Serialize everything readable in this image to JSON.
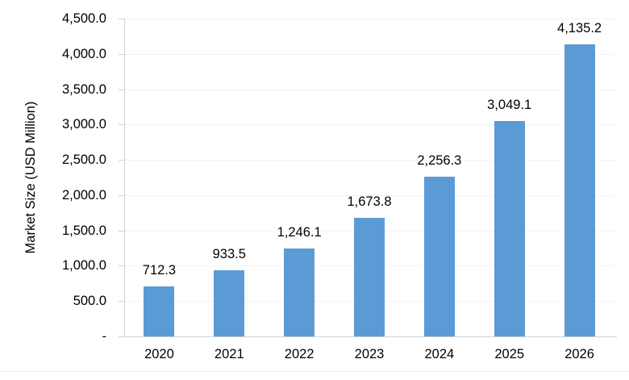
{
  "chart_data": {
    "type": "bar",
    "title": "",
    "xlabel": "",
    "ylabel": "Market Size (USD Million)",
    "categories": [
      "2020",
      "2021",
      "2022",
      "2023",
      "2024",
      "2025",
      "2026"
    ],
    "values": [
      712.3,
      933.5,
      1246.1,
      1673.8,
      2256.3,
      3049.1,
      4135.2
    ],
    "data_labels": [
      "712.3",
      "933.5",
      "1,246.1",
      "1,673.8",
      "2,256.3",
      "3,049.1",
      "4,135.2"
    ],
    "ylim": [
      0,
      4500
    ],
    "ytick_step": 500,
    "ytick_labels": [
      "-",
      "500.0",
      "1,000.0",
      "1,500.0",
      "2,000.0",
      "2,500.0",
      "3,000.0",
      "3,500.0",
      "4,000.0",
      "4,500.0"
    ],
    "grid": true,
    "legend": "none",
    "colors": {
      "bar": "#5B9BD5",
      "axis": "#D2D2D2",
      "gridline": "#F3F3F3",
      "text": "#000000"
    }
  }
}
